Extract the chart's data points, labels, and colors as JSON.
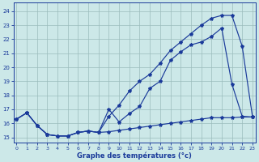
{
  "xlabel": "Graphe des températures (°c)",
  "bg_color": "#cce8e8",
  "line_color": "#1a3a9a",
  "grid_color": "#9bbcbc",
  "x_ticks": [
    0,
    1,
    2,
    3,
    4,
    5,
    6,
    7,
    8,
    9,
    10,
    11,
    12,
    13,
    14,
    15,
    16,
    17,
    18,
    19,
    20,
    21,
    22,
    23
  ],
  "y_ticks": [
    15,
    16,
    17,
    18,
    19,
    20,
    21,
    22,
    23,
    24
  ],
  "ylim": [
    14.6,
    24.6
  ],
  "xlim": [
    -0.3,
    23.3
  ],
  "line1_x": [
    0,
    1,
    2,
    3,
    4,
    5,
    6,
    7,
    8,
    9,
    10,
    11,
    12,
    13,
    14,
    15,
    16,
    17,
    18,
    19,
    20,
    21,
    22,
    23
  ],
  "line1_y": [
    16.3,
    16.75,
    15.85,
    15.2,
    15.1,
    15.1,
    15.35,
    15.45,
    15.35,
    15.4,
    15.5,
    15.6,
    15.7,
    15.8,
    15.9,
    16.0,
    16.1,
    16.2,
    16.3,
    16.4,
    16.4,
    16.4,
    16.45,
    16.45
  ],
  "line2_x": [
    0,
    1,
    2,
    3,
    4,
    5,
    6,
    7,
    8,
    9,
    10,
    11,
    12,
    13,
    14,
    15,
    16,
    17,
    18,
    19,
    20,
    21,
    22,
    23
  ],
  "line2_y": [
    16.3,
    16.75,
    15.85,
    15.2,
    15.1,
    15.1,
    15.35,
    15.45,
    15.35,
    17.0,
    16.1,
    16.7,
    17.2,
    18.5,
    19.0,
    20.5,
    21.1,
    21.6,
    21.8,
    22.2,
    22.8,
    18.8,
    16.5,
    16.45
  ],
  "line3_x": [
    0,
    1,
    2,
    3,
    4,
    5,
    6,
    7,
    8,
    9,
    10,
    11,
    12,
    13,
    14,
    15,
    16,
    17,
    18,
    19,
    20,
    21,
    22,
    23
  ],
  "line3_y": [
    16.3,
    16.75,
    15.85,
    15.2,
    15.1,
    15.1,
    15.35,
    15.45,
    15.35,
    16.5,
    17.3,
    18.3,
    19.0,
    19.5,
    20.3,
    21.2,
    21.8,
    22.4,
    23.0,
    23.5,
    23.7,
    23.7,
    21.5,
    16.5
  ]
}
